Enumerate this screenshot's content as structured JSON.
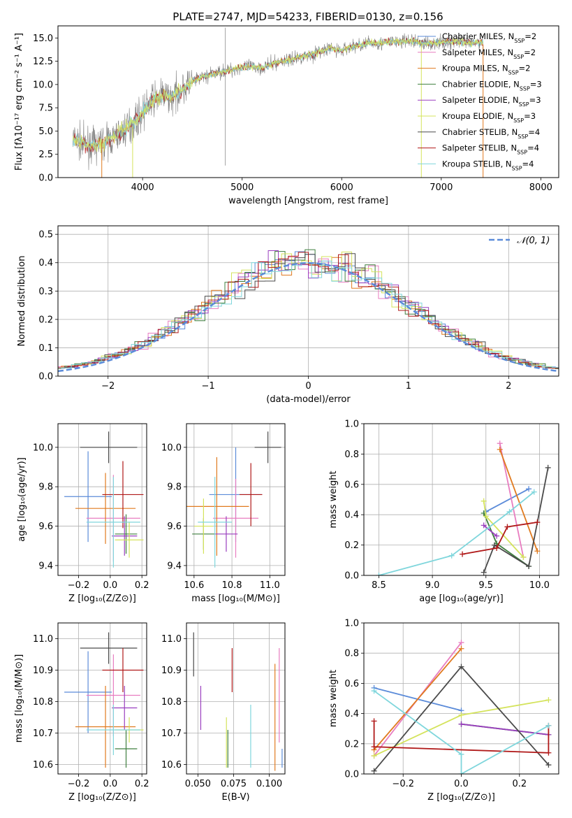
{
  "title": "PLATE=2747, MJD=54233, FIBERID=0130, z=0.156",
  "colors": {
    "chabrier_miles": "#5b8bd9",
    "salpeter_miles": "#e87dc0",
    "kroupa_miles": "#e07a1f",
    "chabrier_elodie": "#3f7f3f",
    "salpeter_elodie": "#9a3fbf",
    "kroupa_elodie": "#d4e35c",
    "chabrier_stelib": "#4a4a4a",
    "salpeter_stelib": "#b01818",
    "kroupa_stelib": "#7fd6dc",
    "gauss": "#5b8bd9",
    "grid": "#b0b0b0"
  },
  "chart_data": [
    {
      "id": "spectrum",
      "type": "line",
      "xlabel": "wavelength [Angstrom, rest frame]",
      "ylabel": "Flux [fλ10⁻¹⁷ erg cm⁻² s⁻¹ A⁻¹]",
      "xlim": [
        3150,
        8180
      ],
      "ylim": [
        0,
        16.3
      ],
      "xticks": [
        "4000",
        "5000",
        "6000",
        "7000",
        "8000"
      ],
      "yticks": [
        "0.0",
        "2.5",
        "5.0",
        "7.5",
        "10.0",
        "12.5",
        "15.0"
      ],
      "legend_position": "right",
      "legend": [
        {
          "name": "Chabrier MILES, N",
          "sub": "SSP",
          "tail": "=2",
          "color": "chabrier_miles"
        },
        {
          "name": "Salpeter MILES, N",
          "sub": "SSP",
          "tail": "=2",
          "color": "salpeter_miles"
        },
        {
          "name": "Kroupa MILES, N",
          "sub": "SSP",
          "tail": "=2",
          "color": "kroupa_miles"
        },
        {
          "name": "Chabrier ELODIE, N",
          "sub": "SSP",
          "tail": "=3",
          "color": "chabrier_elodie"
        },
        {
          "name": "Salpeter ELODIE, N",
          "sub": "SSP",
          "tail": "=3",
          "color": "salpeter_elodie"
        },
        {
          "name": "Kroupa ELODIE, N",
          "sub": "SSP",
          "tail": "=3",
          "color": "kroupa_elodie"
        },
        {
          "name": "Chabrier STELIB, N",
          "sub": "SSP",
          "tail": "=4",
          "color": "chabrier_stelib"
        },
        {
          "name": "Salpeter STELIB, N",
          "sub": "SSP",
          "tail": "=4",
          "color": "salpeter_stelib"
        },
        {
          "name": "Kroupa STELIB, N",
          "sub": "SSP",
          "tail": "=4",
          "color": "kroupa_stelib"
        }
      ],
      "continuum": [
        [
          3300,
          4.2
        ],
        [
          3400,
          3.6
        ],
        [
          3500,
          3.4
        ],
        [
          3600,
          3.7
        ],
        [
          3700,
          4.2
        ],
        [
          3800,
          5.0
        ],
        [
          3900,
          5.8
        ],
        [
          4000,
          7.0
        ],
        [
          4100,
          8.3
        ],
        [
          4200,
          8.8
        ],
        [
          4300,
          8.6
        ],
        [
          4400,
          9.6
        ],
        [
          4500,
          10.3
        ],
        [
          4600,
          10.8
        ],
        [
          4700,
          11.1
        ],
        [
          4800,
          11.4
        ],
        [
          4900,
          11.6
        ],
        [
          5000,
          11.9
        ],
        [
          5100,
          11.9
        ],
        [
          5200,
          11.8
        ],
        [
          5300,
          12.2
        ],
        [
          5400,
          12.5
        ],
        [
          5500,
          12.7
        ],
        [
          5600,
          13.0
        ],
        [
          5700,
          13.2
        ],
        [
          5800,
          13.6
        ],
        [
          5900,
          13.9
        ],
        [
          6000,
          13.6
        ],
        [
          6100,
          14.1
        ],
        [
          6200,
          14.3
        ],
        [
          6300,
          14.5
        ],
        [
          6400,
          14.4
        ],
        [
          6500,
          14.6
        ],
        [
          6600,
          14.6
        ],
        [
          6700,
          14.7
        ],
        [
          6800,
          14.5
        ],
        [
          6900,
          14.4
        ],
        [
          7000,
          14.5
        ],
        [
          7100,
          14.6
        ],
        [
          7200,
          14.6
        ],
        [
          7300,
          14.4
        ],
        [
          7400,
          14.5
        ]
      ],
      "model_edges": [
        [
          3590,
          7420
        ],
        [
          3900,
          6800
        ]
      ],
      "spike": 4830
    },
    {
      "id": "residuals",
      "type": "histogram",
      "xlabel": "(data-model)/error",
      "ylabel": "Normed distribution",
      "xlim": [
        -2.5,
        2.5
      ],
      "ylim": [
        0,
        0.53
      ],
      "xticks": [
        "−2",
        "−1",
        "0",
        "1",
        "2"
      ],
      "yticks": [
        "0.0",
        "0.1",
        "0.2",
        "0.3",
        "0.4",
        "0.5"
      ],
      "legend": "𝒩(0, 1)",
      "legend_position": "top-right",
      "bin_width": 0.1,
      "curve": "normal(0,1) pdf"
    },
    {
      "id": "age_vs_Z",
      "type": "errorbar",
      "xlabel": "Z [log₁₀(Z/Z⊙)]",
      "ylabel": "age  [log₁₀(age/yr)]",
      "xlim": [
        -0.33,
        0.23
      ],
      "ylim": [
        9.35,
        10.12
      ],
      "xticks": [
        "−0.2",
        "0.0",
        "0.2"
      ],
      "yticks": [
        "9.4",
        "9.6",
        "9.8",
        "10.0"
      ],
      "points": [
        {
          "c": "chabrier_miles",
          "x": -0.14,
          "y": 9.75,
          "xe": 0.15,
          "ye": 0.23
        },
        {
          "c": "salpeter_miles",
          "x": 0.02,
          "y": 9.64,
          "xe": 0.17,
          "ye": 0.22
        },
        {
          "c": "kroupa_miles",
          "x": -0.03,
          "y": 9.69,
          "xe": 0.19,
          "ye": 0.18
        },
        {
          "c": "chabrier_elodie",
          "x": 0.1,
          "y": 9.56,
          "xe": 0.07,
          "ye": 0.1
        },
        {
          "c": "salpeter_elodie",
          "x": 0.09,
          "y": 9.55,
          "xe": 0.08,
          "ye": 0.1
        },
        {
          "c": "kroupa_elodie",
          "x": 0.12,
          "y": 9.53,
          "xe": 0.09,
          "ye": 0.09
        },
        {
          "c": "chabrier_stelib",
          "x": -0.01,
          "y": 10.0,
          "xe": 0.18,
          "ye": 0.08
        },
        {
          "c": "salpeter_stelib",
          "x": 0.08,
          "y": 9.76,
          "xe": 0.13,
          "ye": 0.17
        },
        {
          "c": "kroupa_stelib",
          "x": 0.02,
          "y": 9.62,
          "xe": 0.17,
          "ye": 0.23
        }
      ]
    },
    {
      "id": "age_vs_mass",
      "type": "errorbar",
      "xlabel": "mass [log₁₀(M/M⊙)]",
      "ylabel": "",
      "xlim": [
        10.56,
        11.08
      ],
      "ylim": [
        9.35,
        10.12
      ],
      "xticks": [
        "10.6",
        "10.8",
        "11.0"
      ],
      "yticks": [
        "9.4",
        "9.6",
        "9.8",
        "10.0"
      ],
      "points": [
        {
          "c": "chabrier_miles",
          "x": 10.82,
          "y": 9.76,
          "xe": 0.14,
          "ye": 0.24
        },
        {
          "c": "salpeter_miles",
          "x": 10.82,
          "y": 9.64,
          "xe": 0.12,
          "ye": 0.2
        },
        {
          "c": "kroupa_miles",
          "x": 10.72,
          "y": 9.7,
          "xe": 0.17,
          "ye": 0.25
        },
        {
          "c": "chabrier_elodie",
          "x": 10.65,
          "y": 9.56,
          "xe": 0.06,
          "ye": 0.08
        },
        {
          "c": "salpeter_elodie",
          "x": 10.77,
          "y": 9.56,
          "xe": 0.06,
          "ye": 0.09
        },
        {
          "c": "kroupa_elodie",
          "x": 10.65,
          "y": 9.6,
          "xe": 0.05,
          "ye": 0.14
        },
        {
          "c": "chabrier_stelib",
          "x": 10.99,
          "y": 10.0,
          "xe": 0.07,
          "ye": 0.08
        },
        {
          "c": "salpeter_stelib",
          "x": 10.9,
          "y": 9.76,
          "xe": 0.06,
          "ye": 0.16
        },
        {
          "c": "kroupa_stelib",
          "x": 10.71,
          "y": 9.62,
          "xe": 0.09,
          "ye": 0.23
        }
      ]
    },
    {
      "id": "weight_vs_age",
      "type": "line",
      "xlabel": "age  [log₁₀(age/yr)]",
      "ylabel": "mass weight",
      "xlim": [
        8.36,
        10.18
      ],
      "ylim": [
        0,
        1
      ],
      "xticks": [
        "8.5",
        "9.0",
        "9.5",
        "10.0"
      ],
      "yticks": [
        "0.0",
        "0.2",
        "0.4",
        "0.6",
        "0.8",
        "1.0"
      ],
      "series": [
        {
          "c": "chabrier_miles",
          "pts": [
            [
              9.5,
              0.42
            ],
            [
              9.9,
              0.57
            ]
          ]
        },
        {
          "c": "salpeter_miles",
          "pts": [
            [
              9.63,
              0.87
            ],
            [
              9.85,
              0.12
            ]
          ]
        },
        {
          "c": "kroupa_miles",
          "pts": [
            [
              9.63,
              0.83
            ],
            [
              9.98,
              0.16
            ]
          ]
        },
        {
          "c": "chabrier_elodie",
          "pts": [
            [
              9.48,
              0.41
            ],
            [
              9.6,
              0.21
            ],
            [
              9.9,
              0.06
            ]
          ]
        },
        {
          "c": "salpeter_elodie",
          "pts": [
            [
              9.48,
              0.33
            ],
            [
              9.6,
              0.26
            ]
          ]
        },
        {
          "c": "kroupa_elodie",
          "pts": [
            [
              9.48,
              0.49
            ],
            [
              9.5,
              0.39
            ],
            [
              9.85,
              0.12
            ]
          ]
        },
        {
          "c": "chabrier_stelib",
          "pts": [
            [
              9.48,
              0.02
            ],
            [
              9.58,
              0.2
            ],
            [
              9.9,
              0.06
            ],
            [
              10.08,
              0.71
            ]
          ]
        },
        {
          "c": "salpeter_stelib",
          "pts": [
            [
              9.28,
              0.14
            ],
            [
              9.6,
              0.18
            ],
            [
              9.7,
              0.32
            ],
            [
              9.98,
              0.35
            ]
          ]
        },
        {
          "c": "kroupa_stelib",
          "pts": [
            [
              8.5,
              0.0
            ],
            [
              9.18,
              0.13
            ],
            [
              9.72,
              0.42
            ],
            [
              9.95,
              0.55
            ]
          ]
        }
      ]
    },
    {
      "id": "mass_vs_Z",
      "type": "errorbar",
      "xlabel": "Z [log₁₀(Z/Z⊙)]",
      "ylabel": "mass [log₁₀(M/M⊙)]",
      "xlim": [
        -0.33,
        0.23
      ],
      "ylim": [
        10.57,
        11.05
      ],
      "xticks": [
        "−0.2",
        "0.0",
        "0.2"
      ],
      "yticks": [
        "10.6",
        "10.7",
        "10.8",
        "10.9",
        "11.0"
      ],
      "points": [
        {
          "c": "chabrier_miles",
          "x": -0.14,
          "y": 10.83,
          "xe": 0.15,
          "ye": 0.13
        },
        {
          "c": "salpeter_miles",
          "x": 0.02,
          "y": 10.82,
          "xe": 0.17,
          "ye": 0.13
        },
        {
          "c": "kroupa_miles",
          "x": -0.03,
          "y": 10.72,
          "xe": 0.19,
          "ye": 0.13
        },
        {
          "c": "chabrier_elodie",
          "x": 0.1,
          "y": 10.65,
          "xe": 0.07,
          "ye": 0.06
        },
        {
          "c": "salpeter_elodie",
          "x": 0.09,
          "y": 10.78,
          "xe": 0.08,
          "ye": 0.07
        },
        {
          "c": "kroupa_elodie",
          "x": 0.12,
          "y": 10.71,
          "xe": 0.09,
          "ye": 0.04
        },
        {
          "c": "chabrier_stelib",
          "x": -0.01,
          "y": 10.97,
          "xe": 0.18,
          "ye": 0.05
        },
        {
          "c": "salpeter_stelib",
          "x": 0.08,
          "y": 10.9,
          "xe": 0.13,
          "ye": 0.07
        },
        {
          "c": "kroupa_stelib",
          "x": 0.02,
          "y": 10.71,
          "xe": 0.17,
          "ye": 0.08
        }
      ]
    },
    {
      "id": "mass_vs_ebv",
      "type": "errorbar",
      "xlabel": "E(B-V)",
      "ylabel": "",
      "xlim": [
        0.042,
        0.111
      ],
      "ylim": [
        10.57,
        11.05
      ],
      "xticks": [
        "0.050",
        "0.075",
        "0.100"
      ],
      "yticks": [
        "10.6",
        "10.7",
        "10.8",
        "10.9",
        "11.0"
      ],
      "points": [
        {
          "c": "chabrier_miles",
          "x": 0.109,
          "y": 10.62,
          "xe": 0,
          "ye": 0.03
        },
        {
          "c": "salpeter_miles",
          "x": 0.107,
          "y": 10.82,
          "xe": 0,
          "ye": 0.15
        },
        {
          "c": "kroupa_miles",
          "x": 0.104,
          "y": 10.75,
          "xe": 0,
          "ye": 0.17
        },
        {
          "c": "chabrier_elodie",
          "x": 0.071,
          "y": 10.65,
          "xe": 0,
          "ye": 0.06
        },
        {
          "c": "salpeter_elodie",
          "x": 0.052,
          "y": 10.78,
          "xe": 0,
          "ye": 0.07
        },
        {
          "c": "kroupa_elodie",
          "x": 0.07,
          "y": 10.67,
          "xe": 0,
          "ye": 0.08
        },
        {
          "c": "chabrier_stelib",
          "x": 0.047,
          "y": 10.95,
          "xe": 0,
          "ye": 0.07
        },
        {
          "c": "salpeter_stelib",
          "x": 0.074,
          "y": 10.9,
          "xe": 0,
          "ye": 0.07
        },
        {
          "c": "kroupa_stelib",
          "x": 0.087,
          "y": 10.69,
          "xe": 0,
          "ye": 0.1
        }
      ]
    },
    {
      "id": "weight_vs_Z",
      "type": "line",
      "xlabel": "Z [log₁₀(Z/Z⊙)]",
      "ylabel": "mass weight",
      "xlim": [
        -0.335,
        0.335
      ],
      "ylim": [
        0,
        1
      ],
      "xticks": [
        "−0.2",
        "0.0",
        "0.2"
      ],
      "yticks": [
        "0.0",
        "0.2",
        "0.4",
        "0.6",
        "0.8",
        "1.0"
      ],
      "series": [
        {
          "c": "chabrier_miles",
          "pts": [
            [
              -0.3,
              0.57
            ],
            [
              0.0,
              0.42
            ]
          ]
        },
        {
          "c": "salpeter_miles",
          "pts": [
            [
              -0.3,
              0.12
            ],
            [
              0.0,
              0.87
            ]
          ]
        },
        {
          "c": "kroupa_miles",
          "pts": [
            [
              -0.3,
              0.16
            ],
            [
              0.0,
              0.83
            ]
          ]
        },
        {
          "c": "chabrier_elodie",
          "pts": [
            [
              0.0,
              0.33
            ],
            [
              0.3,
              0.26
            ]
          ]
        },
        {
          "c": "salpeter_elodie",
          "pts": [
            [
              0.0,
              0.33
            ],
            [
              0.3,
              0.26
            ]
          ]
        },
        {
          "c": "kroupa_elodie",
          "pts": [
            [
              -0.3,
              0.12
            ],
            [
              0.0,
              0.39
            ],
            [
              0.3,
              0.49
            ]
          ]
        },
        {
          "c": "chabrier_stelib",
          "pts": [
            [
              -0.3,
              0.02
            ],
            [
              0.0,
              0.71
            ],
            [
              0.3,
              0.06
            ]
          ]
        },
        {
          "c": "salpeter_stelib",
          "pts": [
            [
              -0.3,
              0.35
            ],
            [
              -0.3,
              0.18
            ],
            [
              0.3,
              0.14
            ],
            [
              0.3,
              0.32
            ]
          ]
        },
        {
          "c": "kroupa_stelib",
          "pts": [
            [
              -0.3,
              0.55
            ],
            [
              0.0,
              0.13
            ],
            [
              0.0,
              0.0
            ],
            [
              0.3,
              0.32
            ]
          ]
        }
      ]
    }
  ]
}
